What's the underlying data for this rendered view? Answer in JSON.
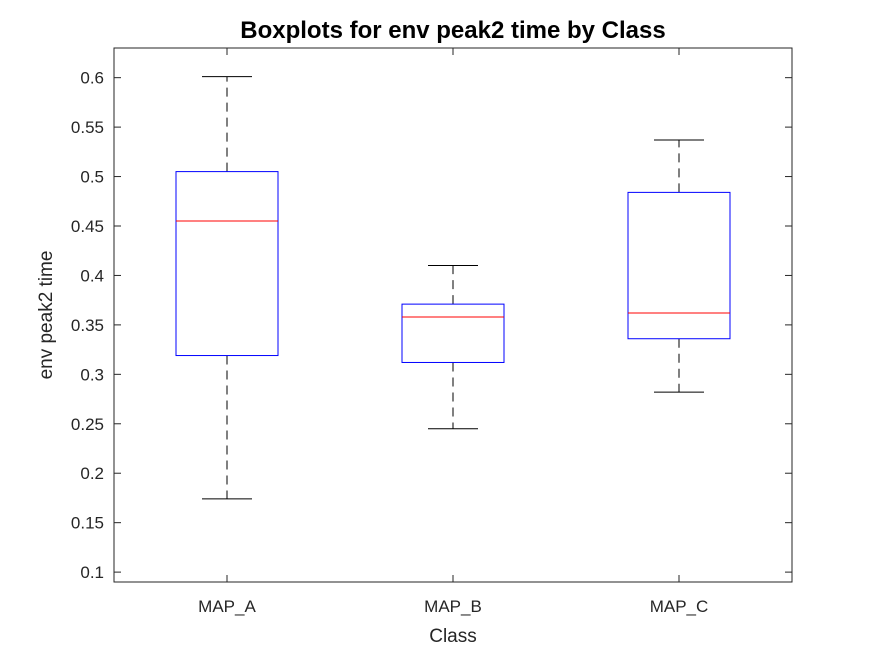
{
  "chart_data": {
    "type": "boxplot",
    "title": "Boxplots for env peak2 time by Class",
    "xlabel": "Class",
    "ylabel": "env peak2 time",
    "ylim": [
      0.09,
      0.63
    ],
    "yticks": [
      "0.1",
      "0.15",
      "0.2",
      "0.25",
      "0.3",
      "0.35",
      "0.4",
      "0.45",
      "0.5",
      "0.55",
      "0.6"
    ],
    "grid": false,
    "colors": {
      "box": "#0000ff",
      "median": "#ff0000",
      "whisker": "#000000",
      "axis": "#262626"
    },
    "categories": [
      "MAP_A",
      "MAP_B",
      "MAP_C"
    ],
    "boxes": [
      {
        "category": "MAP_A",
        "min": 0.174,
        "q1": 0.319,
        "median": 0.455,
        "q3": 0.505,
        "max": 0.601
      },
      {
        "category": "MAP_B",
        "min": 0.245,
        "q1": 0.312,
        "median": 0.358,
        "q3": 0.371,
        "max": 0.41
      },
      {
        "category": "MAP_C",
        "min": 0.282,
        "q1": 0.336,
        "median": 0.362,
        "q3": 0.484,
        "max": 0.537
      }
    ]
  }
}
